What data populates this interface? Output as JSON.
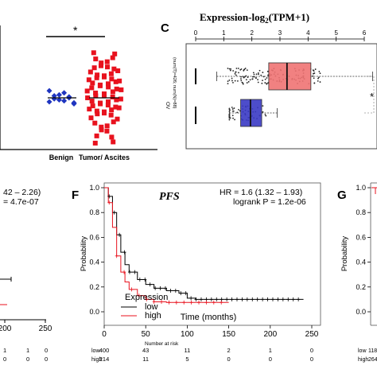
{
  "panel_b": {
    "significance": "*",
    "categories": [
      "Benign",
      "Tumor/ Ascites"
    ],
    "colors": {
      "benign": "#1f35c0",
      "tumor": "#e8121e"
    },
    "chart_data": {
      "type": "scatter",
      "title": "",
      "xlabel": "",
      "ylabel": "",
      "categories": [
        "Benign",
        "Tumor/ Ascites"
      ],
      "series": [
        {
          "values": [
            0.46,
            0.52,
            0.48,
            0.55,
            0.5,
            0.44,
            0.57,
            0.49,
            0.53,
            0.47,
            0.51,
            0.45
          ]
        },
        {
          "values": [
            0.95,
            0.9,
            0.86,
            0.82,
            0.8,
            0.77,
            0.74,
            0.72,
            0.7,
            0.68,
            0.66,
            0.64,
            0.62,
            0.6,
            0.58,
            0.56,
            0.54,
            0.52,
            0.5,
            0.48,
            0.46,
            0.44,
            0.42,
            0.4,
            0.38,
            0.36,
            0.34,
            0.3,
            0.26,
            0.22,
            0.18,
            0.12,
            0.06
          ]
        }
      ]
    }
  },
  "panel_c": {
    "label": "C",
    "title_main": "Expression-log",
    "title_sub": "2",
    "title_tail": "(TPM+1)",
    "ticks": [
      "0",
      "1",
      "2",
      "3",
      "4",
      "5",
      "6"
    ],
    "row_label": "OV",
    "group_label_top": "(num(T)=426; num(N)=88)",
    "star": "*",
    "colors": {
      "tumor_box": "#f07373",
      "normal_box": "#3a3ac4",
      "star": "#e8121e"
    },
    "chart_data": {
      "type": "box",
      "title": "Expression-log2(TPM+1)",
      "xlim": [
        0,
        6.6
      ],
      "series": [
        {
          "q1": 2.6,
          "median": 3.25,
          "q3": 4.1,
          "whisker_low": 0.75,
          "whisker_high": 6.3
        },
        {
          "q1": 1.6,
          "median": 1.95,
          "q3": 2.35,
          "whisker_low": 1.2,
          "whisker_high": 2.9
        }
      ]
    }
  },
  "panel_e": {
    "hr_text": "42 – 2.26)",
    "p_text": "= 4.7e-07",
    "ticks": [
      "200",
      "250"
    ],
    "risk_low": [
      "1",
      "1",
      "0"
    ],
    "risk_high": [
      "0",
      "0",
      "0"
    ]
  },
  "panel_f": {
    "label": "F",
    "title": "PFS",
    "hr_text": "HR = 1.6 (1.32 – 1.93)",
    "p_text": "logrank P = 1.2e-06",
    "ylabel": "Probability",
    "xlabel": "Time (months)",
    "x_ticks": [
      "0",
      "50",
      "100",
      "150",
      "200",
      "250"
    ],
    "y_ticks": [
      "0.0",
      "0.2",
      "0.4",
      "0.6",
      "0.8",
      "1.0"
    ],
    "legend_title": "Expression",
    "legend_low": "low",
    "legend_high": "high",
    "risk_title": "Number at risk",
    "risk_low_label": "low",
    "risk_high_label": "high",
    "risk_low": [
      "400",
      "43",
      "11",
      "2",
      "1",
      "0"
    ],
    "risk_high": [
      "214",
      "11",
      "5",
      "0",
      "0",
      "0"
    ],
    "colors": {
      "low": "#000000",
      "high": "#e8121e"
    },
    "chart_data": {
      "type": "line",
      "title": "PFS",
      "xlabel": "Time (months)",
      "ylabel": "Probability",
      "xlim": [
        0,
        250
      ],
      "ylim": [
        0,
        1
      ],
      "series": [
        {
          "name": "low",
          "x": [
            0,
            5,
            10,
            15,
            20,
            25,
            30,
            40,
            50,
            60,
            75,
            90,
            100,
            110,
            150,
            200,
            240
          ],
          "values": [
            1.0,
            0.93,
            0.8,
            0.62,
            0.48,
            0.38,
            0.32,
            0.26,
            0.22,
            0.19,
            0.17,
            0.15,
            0.11,
            0.1,
            0.1,
            0.1,
            0.1
          ]
        },
        {
          "name": "high",
          "x": [
            0,
            5,
            10,
            15,
            20,
            25,
            30,
            40,
            50,
            60,
            75,
            90,
            110,
            150
          ],
          "values": [
            1.0,
            0.88,
            0.68,
            0.45,
            0.32,
            0.24,
            0.18,
            0.13,
            0.1,
            0.08,
            0.075,
            0.075,
            0.075,
            0.075
          ]
        }
      ]
    }
  },
  "panel_g": {
    "label": "G",
    "ylabel": "Probability",
    "y_ticks": [
      "1.0",
      "0.8",
      "0.6",
      "0.4",
      "0.2",
      "0.0"
    ],
    "risk_low_label": "low",
    "risk_high_label": "high",
    "risk_low_first": "118",
    "risk_high_first": "264"
  }
}
